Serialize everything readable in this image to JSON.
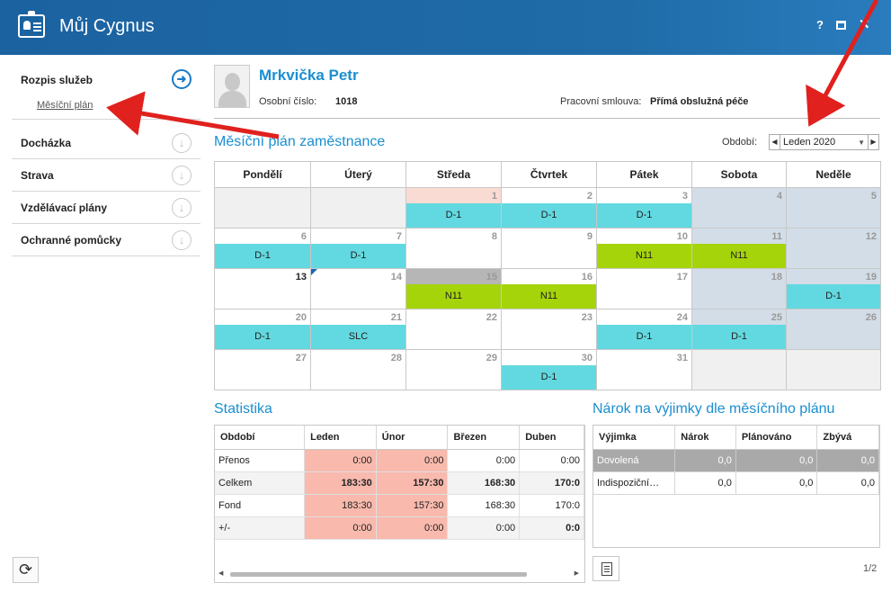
{
  "window": {
    "title": "Můj Cygnus",
    "help": "?",
    "close": "✕"
  },
  "sidebar": {
    "items": [
      {
        "label": "Rozpis služeb",
        "icon": "arrow-right-circle-icon"
      },
      {
        "label": "Docházka",
        "icon": "arrow-down-circle-icon"
      },
      {
        "label": "Strava",
        "icon": "arrow-down-circle-icon"
      },
      {
        "label": "Vzdělávací plány",
        "icon": "arrow-down-circle-icon"
      },
      {
        "label": "Ochranné pomůcky",
        "icon": "arrow-down-circle-icon"
      }
    ],
    "sub_item": "Měsíční plán",
    "refresh_icon": "refresh-icon"
  },
  "profile": {
    "name": "Mrkvička Petr",
    "id_label": "Osobní číslo:",
    "id_value": "1018",
    "contract_label": "Pracovní smlouva:",
    "contract_value": "Přímá obslužná péče"
  },
  "plan": {
    "title": "Měsíční plán zaměstnance",
    "period_label": "Období:",
    "period_value": "Leden 2020",
    "weekdays": [
      "Pondělí",
      "Úterý",
      "Středa",
      "Čtvrtek",
      "Pátek",
      "Sobota",
      "Neděle"
    ],
    "weeks": [
      [
        {
          "day": ""
        },
        {
          "day": ""
        },
        {
          "day": "1",
          "shift": "D-1",
          "holiday": true
        },
        {
          "day": "2",
          "shift": "D-1"
        },
        {
          "day": "3",
          "shift": "D-1"
        },
        {
          "day": "4",
          "weekend": true
        },
        {
          "day": "5",
          "weekend": true
        }
      ],
      [
        {
          "day": "6",
          "shift": "D-1"
        },
        {
          "day": "7",
          "shift": "D-1"
        },
        {
          "day": "8"
        },
        {
          "day": "9"
        },
        {
          "day": "10",
          "shift": "N11"
        },
        {
          "day": "11",
          "shift": "N11",
          "weekend": true
        },
        {
          "day": "12",
          "weekend": true
        }
      ],
      [
        {
          "day": "13",
          "today": true
        },
        {
          "day": "14",
          "marker": true
        },
        {
          "day": "15",
          "shift": "N11",
          "gray": true
        },
        {
          "day": "16",
          "shift": "N11"
        },
        {
          "day": "17"
        },
        {
          "day": "18",
          "weekend": true
        },
        {
          "day": "19",
          "shift": "D-1",
          "weekend": true
        }
      ],
      [
        {
          "day": "20",
          "shift": "D-1"
        },
        {
          "day": "21",
          "shift": "SLC"
        },
        {
          "day": "22"
        },
        {
          "day": "23"
        },
        {
          "day": "24",
          "shift": "D-1"
        },
        {
          "day": "25",
          "shift": "D-1",
          "weekend": true
        },
        {
          "day": "26",
          "weekend": true
        }
      ],
      [
        {
          "day": "27"
        },
        {
          "day": "28"
        },
        {
          "day": "29"
        },
        {
          "day": "30",
          "shift": "D-1"
        },
        {
          "day": "31"
        },
        {
          "day": ""
        },
        {
          "day": ""
        }
      ]
    ],
    "shift_colors": {
      "D-1": "#62d9e0",
      "N11": "#a5d40a",
      "SLC": "#62d9e0"
    }
  },
  "stats": {
    "title": "Statistika",
    "columns": [
      "Období",
      "Leden",
      "Únor",
      "Březen",
      "Duben"
    ],
    "rows": [
      {
        "label": "Přenos",
        "values": [
          "0:00",
          "0:00",
          "0:00",
          "0:00"
        ]
      },
      {
        "label": "Celkem",
        "values": [
          "183:30",
          "157:30",
          "168:30",
          "170:0"
        ]
      },
      {
        "label": "Fond",
        "values": [
          "183:30",
          "157:30",
          "168:30",
          "170:0"
        ]
      },
      {
        "label": "+/-",
        "values": [
          "0:00",
          "0:00",
          "0:00",
          "0:0"
        ]
      }
    ]
  },
  "claims": {
    "title": "Nárok na výjimky dle měsíčního plánu",
    "columns": [
      "Výjimka",
      "Nárok",
      "Plánováno",
      "Zbývá"
    ],
    "rows": [
      {
        "label": "Dovolená",
        "values": [
          "0,0",
          "0,0",
          "0,0"
        ]
      },
      {
        "label": "Indispoziční…",
        "values": [
          "0,0",
          "0,0",
          "0,0"
        ]
      }
    ],
    "pager": "1/2"
  }
}
